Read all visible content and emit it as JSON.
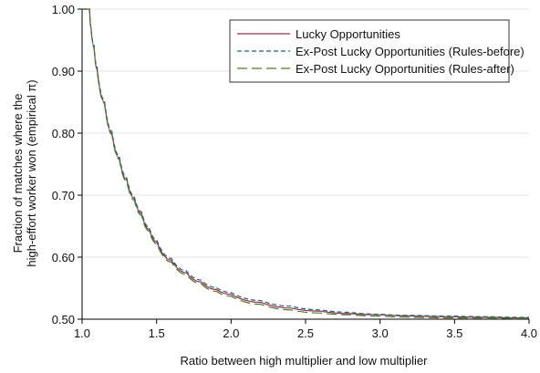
{
  "chart_data": {
    "type": "line",
    "title": "",
    "xlabel": "Ratio between high multiplier and low multiplier",
    "ylabel_lines": [
      "Fraction of matches where the",
      "high-effort worker won (empirical π)"
    ],
    "xlim": [
      1.0,
      4.0
    ],
    "ylim": [
      0.5,
      1.0
    ],
    "x_ticks": [
      1.0,
      1.5,
      2.0,
      2.5,
      3.0,
      3.5,
      4.0
    ],
    "x_tick_labels": [
      "1.0",
      "1.5",
      "2.0",
      "2.5",
      "3.0",
      "3.5",
      "4.0"
    ],
    "y_ticks": [
      0.5,
      0.6,
      0.7,
      0.8,
      0.9,
      1.0
    ],
    "y_tick_labels": [
      "0.50",
      "0.60",
      "0.70",
      "0.80",
      "0.90",
      "1.00"
    ],
    "grid": true,
    "legend_position": "top-right",
    "series": [
      {
        "name": "Lucky Opportunities",
        "color": "#8b3a4a",
        "dash": "solid",
        "x": [
          1.0,
          1.05,
          1.06,
          1.08,
          1.1,
          1.15,
          1.2,
          1.25,
          1.3,
          1.35,
          1.4,
          1.45,
          1.5,
          1.6,
          1.7,
          1.8,
          1.9,
          2.0,
          2.2,
          2.4,
          2.6,
          2.8,
          3.0,
          3.25,
          3.5,
          3.75,
          4.0
        ],
        "y": [
          1.0,
          1.0,
          0.97,
          0.94,
          0.905,
          0.85,
          0.8,
          0.76,
          0.725,
          0.695,
          0.67,
          0.645,
          0.625,
          0.595,
          0.575,
          0.56,
          0.548,
          0.54,
          0.527,
          0.518,
          0.513,
          0.509,
          0.507,
          0.505,
          0.504,
          0.503,
          0.502
        ]
      },
      {
        "name": "Ex-Post Lucky Opportunities (Rules-before)",
        "color": "#2f5d7c",
        "dash": "short-dash",
        "x": [
          1.0,
          1.05,
          1.06,
          1.08,
          1.1,
          1.15,
          1.2,
          1.25,
          1.3,
          1.35,
          1.4,
          1.45,
          1.5,
          1.6,
          1.7,
          1.8,
          1.9,
          2.0,
          2.2,
          2.4,
          2.6,
          2.8,
          3.0,
          3.25,
          3.5,
          3.75,
          4.0
        ],
        "y": [
          1.0,
          1.0,
          0.97,
          0.942,
          0.908,
          0.853,
          0.803,
          0.763,
          0.728,
          0.698,
          0.673,
          0.648,
          0.628,
          0.598,
          0.578,
          0.563,
          0.551,
          0.543,
          0.53,
          0.521,
          0.515,
          0.511,
          0.508,
          0.506,
          0.505,
          0.504,
          0.503
        ]
      },
      {
        "name": "Ex-Post Lucky Opportunities (Rules-after)",
        "color": "#4f7a28",
        "dash": "long-dash",
        "x": [
          1.0,
          1.05,
          1.06,
          1.08,
          1.1,
          1.15,
          1.2,
          1.25,
          1.3,
          1.35,
          1.4,
          1.45,
          1.5,
          1.6,
          1.7,
          1.8,
          1.9,
          2.0,
          2.2,
          2.4,
          2.6,
          2.8,
          3.0,
          3.25,
          3.5,
          3.75,
          4.0
        ],
        "y": [
          1.0,
          1.0,
          0.968,
          0.938,
          0.903,
          0.848,
          0.798,
          0.758,
          0.722,
          0.692,
          0.667,
          0.642,
          0.622,
          0.592,
          0.572,
          0.557,
          0.545,
          0.537,
          0.524,
          0.515,
          0.51,
          0.507,
          0.505,
          0.503,
          0.502,
          0.502,
          0.501
        ]
      }
    ]
  }
}
